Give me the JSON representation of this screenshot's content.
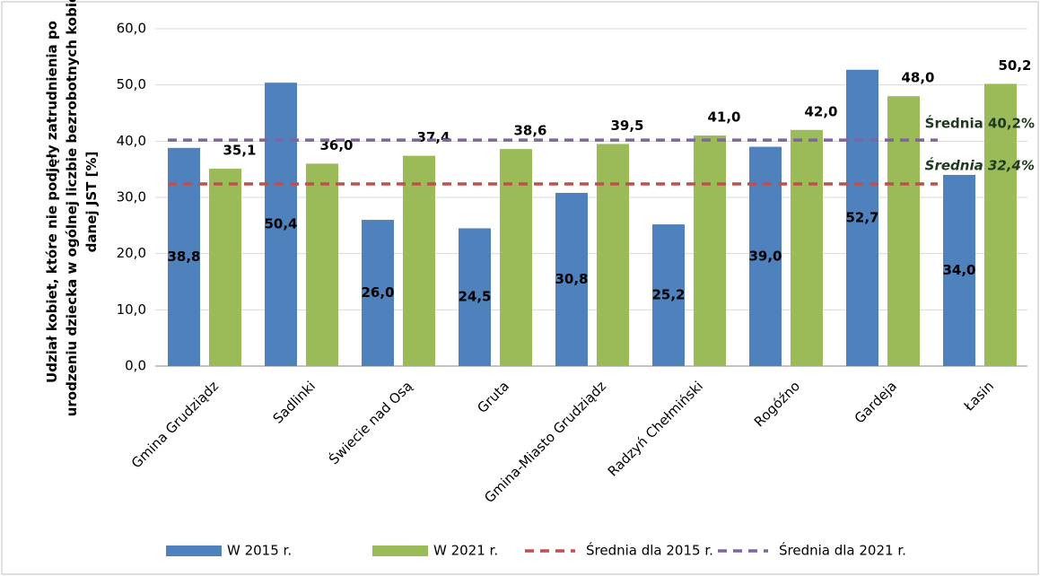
{
  "chart_data": {
    "type": "bar",
    "y_label": [
      "Udział kobiet, które nie podjęły zatrudnienia po",
      "urodzeniu dziecka w ogólnej liczbie bezrobotnych kobiet",
      "danej JST [%]"
    ],
    "categories": [
      "Gmina Grudziądz",
      "Sadlinki",
      "Świecie nad Osą",
      "Gruta",
      "Gmina-Miasto Grudziądz",
      "Radzyń Chełmiński",
      "Rogóźno",
      "Gardeja",
      "Łasin"
    ],
    "series": [
      {
        "name": "W 2015 r.",
        "color": "#4f81bd",
        "values": [
          38.8,
          50.4,
          26.0,
          24.5,
          30.8,
          25.2,
          39.0,
          52.7,
          34.0
        ],
        "value_labels": [
          "38,8",
          "50,4",
          "26,0",
          "24,5",
          "30,8",
          "25,2",
          "39,0",
          "52,7",
          "34,0"
        ]
      },
      {
        "name": "W 2021 r.",
        "color": "#9bbb59",
        "values": [
          35.1,
          36.0,
          37.4,
          38.6,
          39.5,
          41.0,
          42.0,
          48.0,
          50.2
        ],
        "value_labels": [
          "35,1",
          "36,0",
          "37,4",
          "38,6",
          "39,5",
          "41,0",
          "42,0",
          "48,0",
          "50,2"
        ]
      }
    ],
    "lines": [
      {
        "name": "Średnia dla 2015 r.",
        "color": "#c0504d",
        "value": 32.4,
        "label": "Średnia 32,4%"
      },
      {
        "name": "Średnia dla 2021 r.",
        "color": "#8064a2",
        "value": 40.2,
        "label": "Średnia 40,2%"
      }
    ],
    "ylim": [
      0,
      60
    ],
    "yticks": [
      {
        "value": 0,
        "label": "0,0"
      },
      {
        "value": 10,
        "label": "10,0"
      },
      {
        "value": 20,
        "label": "20,0"
      },
      {
        "value": 30,
        "label": "30,0"
      },
      {
        "value": 40,
        "label": "40,0"
      },
      {
        "value": 50,
        "label": "50,0"
      },
      {
        "value": 60,
        "label": "60,0"
      }
    ],
    "grid": true,
    "legend": "bottom"
  }
}
